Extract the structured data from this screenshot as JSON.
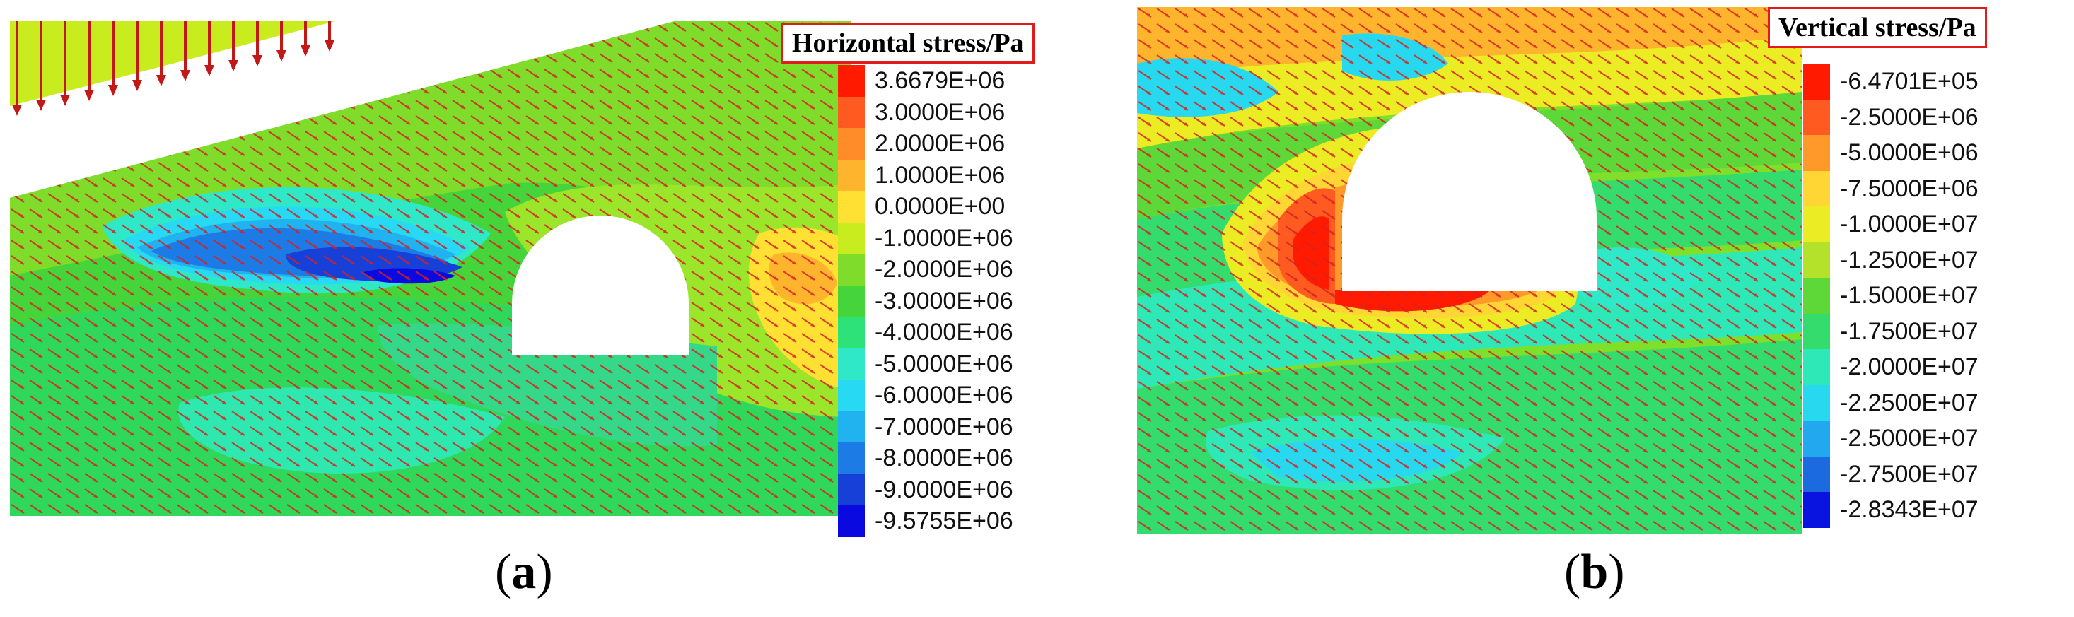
{
  "panels": [
    {
      "label_open": "(",
      "label_letter": "a",
      "label_close": ")",
      "title": "Horizontal stress/Pa",
      "legend": [
        "3.6679E+06",
        "3.0000E+06",
        "2.0000E+06",
        "1.0000E+06",
        "0.0000E+00",
        "-1.0000E+06",
        "-2.0000E+06",
        "-3.0000E+06",
        "-4.0000E+06",
        "-5.0000E+06",
        "-6.0000E+06",
        "-7.0000E+06",
        "-8.0000E+06",
        "-9.0000E+06",
        "-9.5755E+06"
      ],
      "colors": [
        "#ff1a00",
        "#ff5a1f",
        "#ff8c28",
        "#ffb42d",
        "#ffe033",
        "#c8ec1e",
        "#7fdc2a",
        "#45d43a",
        "#2ee27a",
        "#2ee8c8",
        "#27d9f2",
        "#20b3f0",
        "#1d7be6",
        "#1640d8",
        "#0a0ae0"
      ]
    },
    {
      "label_open": "(",
      "label_letter": "b",
      "label_close": ")",
      "title": "Vertical stress/Pa",
      "legend": [
        "-6.4701E+05",
        "-2.5000E+06",
        "-5.0000E+06",
        "-7.5000E+06",
        "-1.0000E+07",
        "-1.2500E+07",
        "-1.5000E+07",
        "-1.7500E+07",
        "-2.0000E+07",
        "-2.2500E+07",
        "-2.5000E+07",
        "-2.7500E+07",
        "-2.8343E+07"
      ],
      "colors": [
        "#ff1a00",
        "#ff5a1f",
        "#ff9a2a",
        "#ffd633",
        "#ecec24",
        "#b4e22a",
        "#5ed838",
        "#34dc6e",
        "#2ee8b8",
        "#28d8ee",
        "#22a8ee",
        "#1c6ae0",
        "#0a14e0"
      ]
    }
  ]
}
